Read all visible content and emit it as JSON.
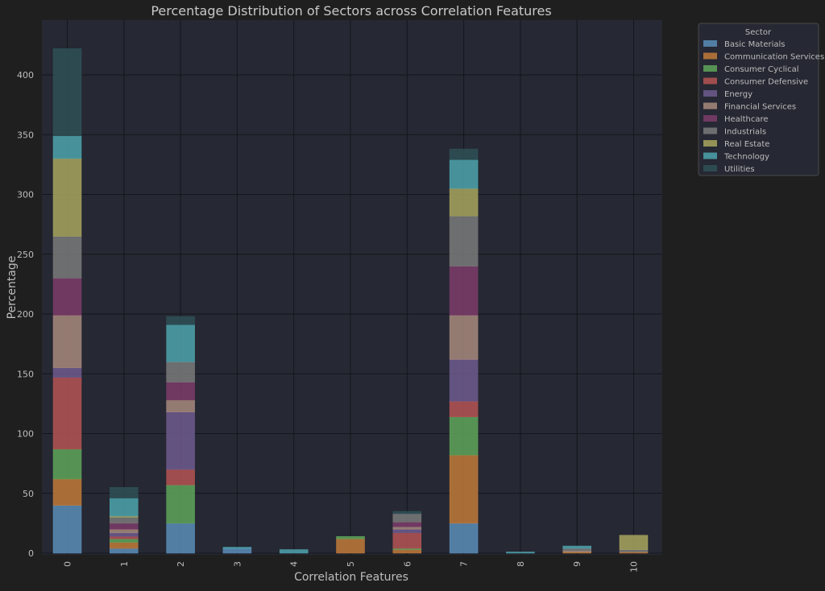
{
  "chart_data": {
    "type": "bar",
    "stacked": true,
    "title": "Percentage Distribution of Sectors across Correlation Features",
    "xlabel": "Correlation Features",
    "ylabel": "Percentage",
    "categories": [
      "0",
      "1",
      "2",
      "3",
      "4",
      "5",
      "6",
      "7",
      "8",
      "9",
      "10"
    ],
    "ylim": [
      0,
      445
    ],
    "yticks": [
      0,
      50,
      100,
      150,
      200,
      250,
      300,
      350,
      400
    ],
    "grid": true,
    "legend": {
      "title": "Sector",
      "position": "outside top-right"
    },
    "series": [
      {
        "name": "Basic Materials",
        "color": "#5b8db8",
        "values": [
          40,
          4,
          25,
          4,
          0,
          0,
          0,
          25,
          0,
          0,
          0
        ]
      },
      {
        "name": "Communication Services",
        "color": "#c17a3a",
        "values": [
          22,
          5,
          0,
          0,
          0,
          12,
          3,
          57,
          0,
          1,
          1
        ]
      },
      {
        "name": "Consumer Cyclical",
        "color": "#5fa55a",
        "values": [
          25,
          3,
          32,
          0,
          0,
          2,
          1,
          32,
          0,
          0,
          0
        ]
      },
      {
        "name": "Consumer Defensive",
        "color": "#b55454",
        "values": [
          60,
          2,
          13,
          0,
          0,
          0,
          13,
          13,
          0,
          0,
          0
        ]
      },
      {
        "name": "Energy",
        "color": "#6e5a8e",
        "values": [
          8,
          3,
          48,
          0,
          0,
          0,
          3,
          35,
          0,
          0,
          0
        ]
      },
      {
        "name": "Financial Services",
        "color": "#a88a7e",
        "values": [
          44,
          3,
          10,
          0,
          0,
          0,
          2,
          37,
          0,
          1,
          0
        ]
      },
      {
        "name": "Healthcare",
        "color": "#7d3c6b",
        "values": [
          31,
          5,
          15,
          0,
          0,
          0,
          4,
          41,
          0,
          0,
          0
        ]
      },
      {
        "name": "Industrials",
        "color": "#7a7a7a",
        "values": [
          35,
          5,
          17,
          0,
          0,
          0,
          7,
          42,
          0,
          2,
          2
        ]
      },
      {
        "name": "Real Estate",
        "color": "#a8a45e",
        "values": [
          65,
          1,
          0,
          0,
          0,
          0,
          0,
          23,
          0,
          0,
          12
        ]
      },
      {
        "name": "Technology",
        "color": "#4ea3ad",
        "values": [
          19,
          15,
          31,
          1,
          3,
          0,
          0,
          24,
          1,
          2,
          0
        ]
      },
      {
        "name": "Utilities",
        "color": "#2f5057",
        "values": [
          73,
          9,
          7,
          0,
          0,
          0,
          2,
          9,
          0,
          0,
          0
        ]
      }
    ],
    "colors": {
      "figure_bg": "#1f1f1f",
      "axes_bg": "#262833",
      "grid": "#14161c",
      "text": "#bdbdbd",
      "title": "#c8c8c8",
      "legend_bg": "#262833",
      "legend_border": "#4a4a4a"
    }
  }
}
